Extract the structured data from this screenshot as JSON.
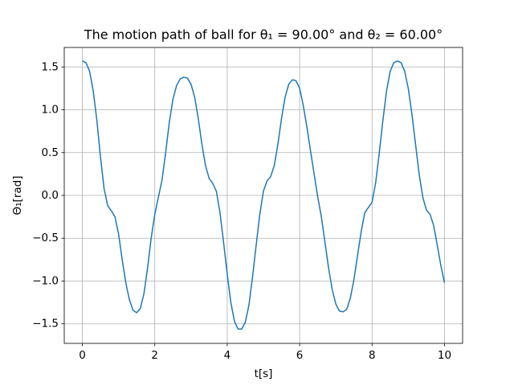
{
  "chart_data": {
    "type": "line",
    "title": "The motion path of ball for θ₁ = 90.00° and θ₂ = 60.00°",
    "x_label": "t[s]",
    "y_label": "Θ₁[rad]",
    "color": "#1f77b4",
    "grid": true,
    "xlim": [
      -0.5,
      10.5
    ],
    "ylim": [
      -1.728,
      1.728
    ],
    "xticks": [
      0,
      2,
      4,
      6,
      8,
      10
    ],
    "yticks": [
      {
        "value": -1.5,
        "label": "−1.5"
      },
      {
        "value": -1,
        "label": "−1.0"
      },
      {
        "value": -0.5,
        "label": "−0.5"
      },
      {
        "value": 0,
        "label": "0.0"
      },
      0.5,
      {
        "value": 1,
        "label": "1.0"
      },
      1.5
    ],
    "x": [
      0,
      0.1,
      0.2,
      0.3,
      0.4,
      0.5,
      0.6,
      0.7,
      0.8,
      0.9,
      1,
      1.1,
      1.2,
      1.3,
      1.4,
      1.5,
      1.6,
      1.7,
      1.8,
      1.9,
      2,
      2.1,
      2.2,
      2.3,
      2.4,
      2.5,
      2.6,
      2.7,
      2.8,
      2.9,
      3,
      3.1,
      3.2,
      3.3,
      3.4,
      3.5,
      3.6,
      3.7,
      3.8,
      3.9,
      4,
      4.1,
      4.2,
      4.3,
      4.4,
      4.5,
      4.6,
      4.7,
      4.8,
      4.9,
      5,
      5.1,
      5.2,
      5.3,
      5.4,
      5.5,
      5.6,
      5.7,
      5.8,
      5.9,
      6,
      6.1,
      6.2,
      6.3,
      6.4,
      6.5,
      6.6,
      6.7,
      6.8,
      6.9,
      7,
      7.1,
      7.2,
      7.3,
      7.4,
      7.5,
      7.6,
      7.7,
      7.8,
      7.9,
      8,
      8.1,
      8.2,
      8.3,
      8.4,
      8.5,
      8.6,
      8.7,
      8.8,
      8.9,
      9,
      9.1,
      9.2,
      9.3,
      9.4,
      9.5,
      9.6,
      9.7,
      9.8,
      9.9,
      10
    ],
    "values": [
      1.57,
      1.55,
      1.45,
      1.22,
      0.88,
      0.45,
      0.08,
      -0.12,
      -0.18,
      -0.25,
      -0.45,
      -0.75,
      -1.02,
      -1.22,
      -1.34,
      -1.37,
      -1.32,
      -1.15,
      -0.85,
      -0.5,
      -0.22,
      -0.02,
      0.18,
      0.5,
      0.85,
      1.12,
      1.28,
      1.36,
      1.38,
      1.37,
      1.3,
      1.15,
      0.9,
      0.6,
      0.35,
      0.2,
      0.14,
      0.05,
      -0.2,
      -0.55,
      -0.92,
      -1.25,
      -1.47,
      -1.56,
      -1.56,
      -1.48,
      -1.28,
      -0.95,
      -0.58,
      -0.22,
      0.05,
      0.17,
      0.22,
      0.35,
      0.6,
      0.9,
      1.15,
      1.3,
      1.35,
      1.34,
      1.25,
      1.05,
      0.8,
      0.52,
      0.25,
      -0.02,
      -0.25,
      -0.55,
      -0.85,
      -1.1,
      -1.27,
      -1.35,
      -1.36,
      -1.33,
      -1.2,
      -0.98,
      -0.7,
      -0.42,
      -0.2,
      -0.14,
      -0.08,
      0.15,
      0.5,
      0.88,
      1.22,
      1.45,
      1.55,
      1.57,
      1.55,
      1.45,
      1.25,
      0.95,
      0.6,
      0.25,
      -0.02,
      -0.17,
      -0.22,
      -0.35,
      -0.58,
      -0.82,
      -1.02
    ]
  }
}
